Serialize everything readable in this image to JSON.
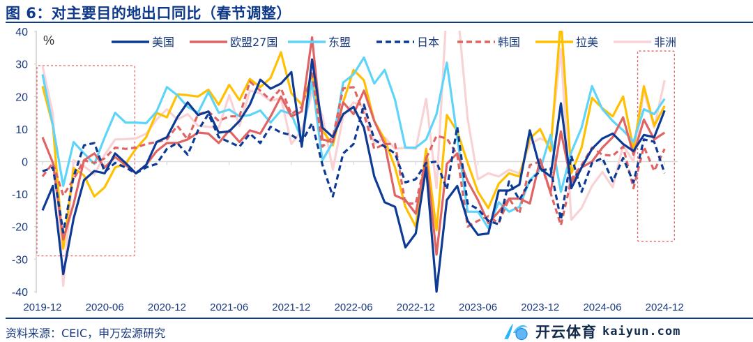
{
  "title": "图 6：对主要目的地出口同比（春节调整）",
  "source": "资料来源：CEIC，申万宏源研究",
  "watermark": {
    "cn": "开云体育",
    "en": "kaiyun.com"
  },
  "chart_data": {
    "type": "line",
    "title": "对主要目的地出口同比（春节调整）",
    "ylabel": "%",
    "xlabel": "",
    "ylim": [
      -40,
      40
    ],
    "yticks": [
      40,
      30,
      20,
      10,
      0,
      -10,
      -20,
      -30,
      -40
    ],
    "xtick_labels": [
      "2019-12",
      "2020-06",
      "2020-12",
      "2021-06",
      "2021-12",
      "2022-06",
      "2022-12",
      "2023-06",
      "2023-12",
      "2024-06",
      "2024-12"
    ],
    "x_range": [
      "2019-12",
      "2024-12"
    ],
    "legend_position": "top",
    "highlight_boxes": [
      [
        "2019-12",
        "2020-08"
      ],
      [
        "2024-10",
        "2024-12"
      ]
    ],
    "series": [
      {
        "name": "美国",
        "color": "#0c3a94",
        "dash": false,
        "values": [
          -15,
          -7.5,
          -34.6,
          -17.5,
          -5.7,
          -2.9,
          -3.6,
          2.5,
          -0.4,
          -3.6,
          -1,
          6,
          7.5,
          13.6,
          18.2,
          14.3,
          15.4,
          8.9,
          9.3,
          12.5,
          17.5,
          25.2,
          22.4,
          24,
          27.5,
          4.6,
          31.4,
          10.4,
          7.5,
          14.6,
          16.8,
          10.4,
          -4.6,
          -12.5,
          -13.9,
          -26.4,
          -22.1,
          -1.8,
          -40,
          -11.8,
          -7.5,
          -18.2,
          -22.5,
          -22.1,
          -8.9,
          -8.9,
          -7.1,
          9.6,
          -2.1,
          -4.6,
          17.9,
          -8.2,
          -1.8,
          3.9,
          7.1,
          8.6,
          5.4,
          3.2,
          8.2,
          7.5,
          15.7
        ]
      },
      {
        "name": "欧盟27国",
        "color": "#e06464",
        "dash": false,
        "values": [
          7.5,
          -0.4,
          -24,
          -13,
          0.4,
          2.5,
          -1.8,
          1.4,
          -1,
          -3.6,
          -1,
          3.2,
          5.7,
          5.7,
          6.8,
          8.9,
          8.6,
          5.7,
          9.6,
          6,
          9.6,
          8.6,
          13.9,
          20,
          13.9,
          15.4,
          38.2,
          6.8,
          6,
          18.2,
          14.6,
          21.8,
          12.5,
          5.4,
          -10.4,
          -11.8,
          -16,
          1,
          -28.6,
          -0.7,
          2.5,
          -6,
          -11.8,
          -18.9,
          -15.4,
          -11.4,
          -11.4,
          -12.9,
          0.7,
          -9.6,
          9.3,
          -6.4,
          -1.8,
          0,
          4.3,
          7.5,
          13.6,
          2.1,
          12.9,
          6.8,
          8.9
        ]
      },
      {
        "name": "东盟",
        "color": "#5fd4f9",
        "dash": false,
        "values": [
          26.8,
          11,
          -7.5,
          6,
          2.5,
          -0.7,
          7.5,
          15,
          12,
          12,
          11.8,
          15.4,
          22.9,
          20.4,
          16.8,
          15,
          21.4,
          15,
          16,
          13.9,
          14.3,
          15.7,
          12,
          15.7,
          14.6,
          6.8,
          24.6,
          0.4,
          6,
          24.3,
          26.8,
          32,
          24,
          28.2,
          19,
          4.3,
          4.3,
          6.8,
          14.6,
          30.4,
          7.5,
          -15.4,
          -15.4,
          -20.4,
          -12.5,
          -15.4,
          -13.9,
          -5.7,
          -2.5,
          8.2,
          -9.3,
          2.9,
          10.4,
          23.2,
          16.1,
          12.5,
          9.6,
          6.1,
          16.1,
          14.6,
          19.3
        ]
      },
      {
        "name": "日本",
        "color": "#0c3a94",
        "dash": true,
        "values": [
          -3,
          -1.8,
          -21.8,
          -4.6,
          5,
          5.7,
          -3.2,
          -0.4,
          -1.8,
          -3.6,
          -1.8,
          -0.7,
          3.9,
          5.7,
          2.1,
          9.6,
          14.6,
          7.5,
          6,
          4.6,
          8.6,
          5.7,
          10.7,
          8.9,
          8.2,
          6,
          11.8,
          -1,
          -10.7,
          2.5,
          5.4,
          17.5,
          6.8,
          4.6,
          2.5,
          -6.4,
          -5.4,
          -0.4,
          0,
          -8.6,
          10.7,
          -12.9,
          -14.6,
          -18.2,
          -19.3,
          -6.1,
          -11.8,
          -6.1,
          -2.9,
          -2.1,
          -17.9,
          1.8,
          -9.3,
          -0.4,
          1.1,
          -6.1,
          1.1,
          -6.4,
          6.8,
          6.1,
          -3.6
        ]
      },
      {
        "name": "韩国",
        "color": "#e06464",
        "dash": true,
        "values": [
          -4.6,
          -0.4,
          -10.4,
          -5.4,
          0.4,
          -0.4,
          1,
          4.3,
          3.9,
          4.3,
          5.4,
          6,
          6.8,
          11,
          6.8,
          14.6,
          15.4,
          12.5,
          13.9,
          13.9,
          24.6,
          21.8,
          18.9,
          22.5,
          14.6,
          16.8,
          27.1,
          4.6,
          7.5,
          22.5,
          22.9,
          14.6,
          3.9,
          5.4,
          5.4,
          -12.9,
          -12.9,
          1,
          7.9,
          7.1,
          2.1,
          -20,
          -18.2,
          -16.8,
          -18.9,
          -11.4,
          -16,
          -1.1,
          0,
          -9.6,
          -19.6,
          -5.4,
          -1.1,
          4.3,
          2.1,
          1.8,
          4.6,
          -8.2,
          4.6,
          -2.9,
          3.9
        ]
      },
      {
        "name": "拉美",
        "color": "#ffc000",
        "dash": false,
        "values": [
          23.2,
          11,
          -26.8,
          -2,
          -4.3,
          -10.7,
          -7.9,
          -1.8,
          -0.7,
          3.9,
          7.5,
          15,
          13.6,
          20.7,
          20.4,
          20,
          22.1,
          17.5,
          23.6,
          18.9,
          25.4,
          22.9,
          25.7,
          33.6,
          21,
          17.5,
          26.8,
          9.6,
          5,
          18.2,
          28.2,
          25,
          12.5,
          6.8,
          -1.8,
          -13.9,
          -20,
          3.9,
          -21.1,
          14.3,
          9.3,
          -0.4,
          -9.3,
          -14.3,
          -6.8,
          -3.6,
          -4.6,
          7.1,
          10,
          3.2,
          44,
          -3.6,
          4.3,
          19.6,
          16.4,
          13.9,
          20,
          3.9,
          23.2,
          11,
          17.1
        ]
      },
      {
        "name": "非洲",
        "color": "#f9d2d5",
        "dash": false,
        "values": [
          29.3,
          14.6,
          -38.2,
          0.4,
          -1.4,
          -3.9,
          2.1,
          6.8,
          6.9,
          7.1,
          8.6,
          12.9,
          16.1,
          12.9,
          14.6,
          11,
          10.7,
          10.4,
          20.4,
          11,
          21.8,
          21,
          18.6,
          19.6,
          5.4,
          9.6,
          21,
          14,
          -2.5,
          14,
          18.2,
          16.8,
          5.4,
          7.5,
          3.9,
          4.3,
          3.9,
          19.3,
          -8.2,
          48,
          48,
          13.2,
          -5.4,
          -3.6,
          -4.6,
          -2.5,
          -3.6,
          5.4,
          7.1,
          5.7,
          34.6,
          -17.9,
          -14.3,
          -7.5,
          -3.2,
          -7.9,
          5,
          0,
          21.8,
          10.4,
          25
        ]
      }
    ]
  }
}
